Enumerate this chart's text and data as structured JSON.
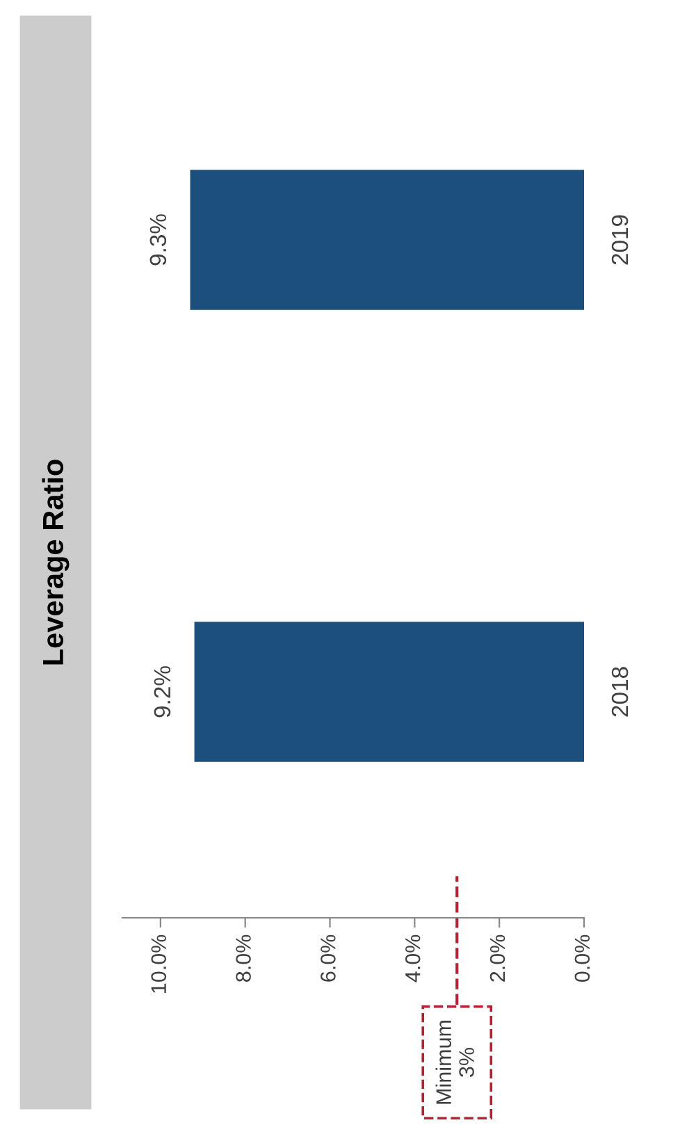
{
  "chart_data": {
    "type": "bar",
    "title": "Leverage Ratio",
    "orientation": "horizontal",
    "categories": [
      "2019",
      "2018"
    ],
    "values": [
      9.3,
      9.2
    ],
    "color": "#1c4f7c",
    "data_labels": true,
    "value_labels": [
      "9.3%",
      "9.2%"
    ],
    "xlim": [
      10.9,
      0
    ],
    "xticks": [
      {
        "value": 0,
        "label": "0.0%"
      },
      {
        "value": 2,
        "label": "2.0%"
      },
      {
        "value": 4,
        "label": "4.0%"
      },
      {
        "value": 6,
        "label": "6.0%"
      },
      {
        "value": 8,
        "label": "8.0%"
      },
      {
        "value": 10,
        "label": "10.0%"
      }
    ],
    "ref_lines": [
      {
        "axis": "x",
        "value": 3,
        "label": "Minimum\n3%",
        "color": "#b22234",
        "line_style": "dashed"
      }
    ],
    "grid": false,
    "legend": false
  }
}
